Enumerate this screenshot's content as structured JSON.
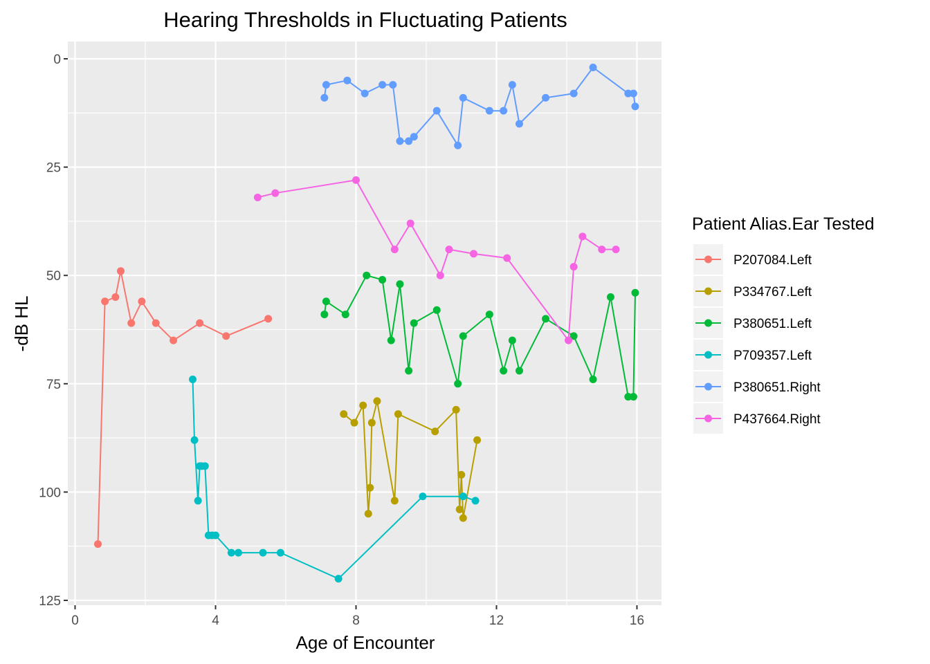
{
  "chart_data": {
    "type": "line",
    "title": "Hearing Thresholds in Fluctuating Patients",
    "xlabel": "Age of Encounter",
    "ylabel": "-dB HL",
    "xlim": [
      -0.1,
      16.7
    ],
    "ylim": [
      0,
      125
    ],
    "y_reversed": true,
    "x_ticks": [
      0,
      4,
      8,
      12,
      16
    ],
    "y_ticks": [
      0,
      25,
      50,
      75,
      100,
      125
    ],
    "grid": true,
    "legend": {
      "title": "Patient Alias.Ear Tested",
      "position": "right"
    },
    "series": [
      {
        "name": "P207084.Left",
        "color": "#F8766D",
        "x": [
          0.65,
          0.85,
          1.15,
          1.3,
          1.6,
          1.9,
          2.3,
          2.8,
          3.55,
          4.3,
          5.5
        ],
        "y": [
          112,
          56,
          55,
          49,
          61,
          56,
          61,
          65,
          61,
          64,
          60
        ]
      },
      {
        "name": "P334767.Left",
        "color": "#B79F00",
        "x": [
          7.65,
          7.95,
          8.2,
          8.35,
          8.4,
          8.45,
          8.6,
          9.1,
          9.2,
          10.25,
          10.85,
          10.95,
          11.0,
          11.05,
          11.45
        ],
        "y": [
          82,
          84,
          80,
          105,
          99,
          84,
          79,
          102,
          82,
          86,
          81,
          104,
          96,
          106,
          88
        ]
      },
      {
        "name": "P380651.Left",
        "color": "#00BA38",
        "x": [
          7.1,
          7.15,
          7.7,
          8.3,
          8.75,
          9.0,
          9.25,
          9.5,
          9.65,
          10.3,
          10.9,
          11.05,
          11.8,
          12.2,
          12.45,
          12.65,
          13.4,
          14.2,
          14.75,
          15.25,
          15.75,
          15.9,
          15.95
        ],
        "y": [
          59,
          56,
          59,
          50,
          51,
          65,
          52,
          72,
          61,
          58,
          75,
          64,
          59,
          72,
          65,
          72,
          60,
          64,
          74,
          55,
          78,
          78,
          54
        ]
      },
      {
        "name": "P709357.Left",
        "color": "#00BFC4",
        "x": [
          3.35,
          3.4,
          3.5,
          3.55,
          3.6,
          3.7,
          3.8,
          3.9,
          4.0,
          4.45,
          4.65,
          5.35,
          5.85,
          7.5,
          9.9,
          11.05,
          11.4
        ],
        "y": [
          74,
          88,
          102,
          94,
          94,
          94,
          110,
          110,
          110,
          114,
          114,
          114,
          114,
          120,
          101,
          101,
          102
        ]
      },
      {
        "name": "P380651.Right",
        "color": "#619CFF",
        "x": [
          7.1,
          7.15,
          7.75,
          8.25,
          8.75,
          9.05,
          9.25,
          9.5,
          9.65,
          10.3,
          10.9,
          11.05,
          11.8,
          12.2,
          12.45,
          12.65,
          13.4,
          14.2,
          14.75,
          15.75,
          15.9,
          15.95
        ],
        "y": [
          9,
          6,
          5,
          8,
          6,
          6,
          19,
          19,
          18,
          12,
          20,
          9,
          12,
          12,
          6,
          15,
          9,
          8,
          2,
          8,
          8,
          11
        ]
      },
      {
        "name": "P437664.Right",
        "color": "#F564E3",
        "x": [
          5.2,
          5.7,
          8.0,
          9.1,
          9.55,
          10.4,
          10.65,
          11.35,
          12.3,
          14.05,
          14.2,
          14.45,
          15.0,
          15.4
        ],
        "y": [
          32,
          31,
          28,
          44,
          38,
          50,
          44,
          45,
          46,
          65,
          48,
          41,
          44,
          44
        ]
      }
    ]
  }
}
